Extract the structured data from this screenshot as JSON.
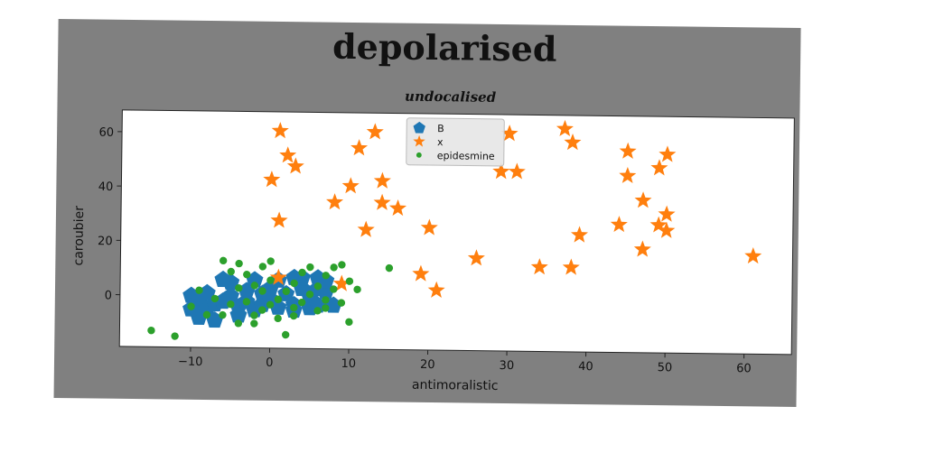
{
  "chart_data": {
    "type": "scatter",
    "title": "depolarised",
    "subtitle": "undocalised",
    "xlabel": "antimoralistic",
    "ylabel": "caroubier",
    "xlim": [
      -19,
      66
    ],
    "ylim": [
      -19,
      68
    ],
    "xticks": [
      -10,
      0,
      10,
      20,
      30,
      40,
      50,
      60
    ],
    "yticks": [
      0,
      20,
      40,
      60
    ],
    "grid": false,
    "legend_position": "top-center",
    "series": [
      {
        "name": "B",
        "marker": "pentagon",
        "color": "#1f77b4",
        "points": [
          [
            -10,
            0
          ],
          [
            -9,
            -2
          ],
          [
            -8,
            -5
          ],
          [
            -9,
            -8
          ],
          [
            -10,
            -5
          ],
          [
            -7,
            -3
          ],
          [
            -8,
            1
          ],
          [
            -7,
            -9
          ],
          [
            -5,
            5
          ],
          [
            -5,
            0
          ],
          [
            -4,
            -4
          ],
          [
            -4,
            -7
          ],
          [
            -3,
            2
          ],
          [
            -3,
            -2
          ],
          [
            -2,
            6
          ],
          [
            -2,
            -5
          ],
          [
            -1,
            1
          ],
          [
            -1,
            -3
          ],
          [
            0,
            3
          ],
          [
            0,
            -1
          ],
          [
            1,
            6
          ],
          [
            1,
            -4
          ],
          [
            2,
            1
          ],
          [
            3,
            -3
          ],
          [
            3,
            -5
          ],
          [
            4,
            3
          ],
          [
            4,
            7
          ],
          [
            5,
            0
          ],
          [
            5,
            -4
          ],
          [
            6,
            7
          ],
          [
            6,
            3
          ],
          [
            6,
            -3
          ],
          [
            7,
            2
          ],
          [
            7,
            6
          ],
          [
            8,
            -3
          ],
          [
            -6,
            6
          ],
          [
            3,
            7
          ],
          [
            -6,
            -2
          ]
        ]
      },
      {
        "name": "x",
        "marker": "star",
        "color": "#ff7f0e",
        "points": [
          [
            1,
            61
          ],
          [
            2,
            52
          ],
          [
            3,
            48
          ],
          [
            0,
            43
          ],
          [
            1,
            28
          ],
          [
            1,
            7
          ],
          [
            8,
            35
          ],
          [
            10,
            41
          ],
          [
            11,
            55
          ],
          [
            12,
            25
          ],
          [
            13,
            61
          ],
          [
            14,
            43
          ],
          [
            14,
            35
          ],
          [
            16,
            33
          ],
          [
            19,
            9
          ],
          [
            20,
            26
          ],
          [
            21,
            3
          ],
          [
            26,
            15
          ],
          [
            29,
            47
          ],
          [
            30,
            61
          ],
          [
            31,
            47
          ],
          [
            34,
            12
          ],
          [
            37,
            63
          ],
          [
            38,
            12
          ],
          [
            38,
            58
          ],
          [
            39,
            24
          ],
          [
            44,
            28
          ],
          [
            45,
            55
          ],
          [
            45,
            46
          ],
          [
            47,
            19
          ],
          [
            47,
            37
          ],
          [
            49,
            28
          ],
          [
            49,
            49
          ],
          [
            50,
            54
          ],
          [
            50,
            32
          ],
          [
            50,
            26
          ],
          [
            61,
            17
          ],
          [
            9,
            5
          ]
        ]
      },
      {
        "name": "epidesmine",
        "marker": "circle",
        "color": "#2ca02c",
        "points": [
          [
            -15,
            -13
          ],
          [
            -12,
            -15
          ],
          [
            -10,
            -4
          ],
          [
            -9,
            2
          ],
          [
            -8,
            -7
          ],
          [
            -7,
            -1
          ],
          [
            -6,
            13
          ],
          [
            -6,
            -7
          ],
          [
            -5,
            9
          ],
          [
            -5,
            -3
          ],
          [
            -4,
            3
          ],
          [
            -4,
            -10
          ],
          [
            -3,
            8
          ],
          [
            -3,
            -2
          ],
          [
            -2,
            4
          ],
          [
            -2,
            -7
          ],
          [
            -1,
            11
          ],
          [
            -1,
            2
          ],
          [
            -1,
            -5
          ],
          [
            0,
            13
          ],
          [
            0,
            6
          ],
          [
            0,
            -3
          ],
          [
            1,
            -1
          ],
          [
            1,
            -8
          ],
          [
            2,
            2
          ],
          [
            2,
            -14
          ],
          [
            3,
            5
          ],
          [
            3,
            -4
          ],
          [
            4,
            9
          ],
          [
            4,
            -2
          ],
          [
            5,
            1
          ],
          [
            6,
            4
          ],
          [
            6,
            -5
          ],
          [
            7,
            8
          ],
          [
            7,
            -1
          ],
          [
            8,
            11
          ],
          [
            8,
            3
          ],
          [
            9,
            -2
          ],
          [
            9,
            12
          ],
          [
            10,
            6
          ],
          [
            10,
            -9
          ],
          [
            11,
            3
          ],
          [
            15,
            11
          ],
          [
            -4,
            12
          ],
          [
            5,
            11
          ],
          [
            3,
            -7
          ],
          [
            -2,
            -10
          ],
          [
            7,
            -4
          ]
        ]
      }
    ]
  }
}
